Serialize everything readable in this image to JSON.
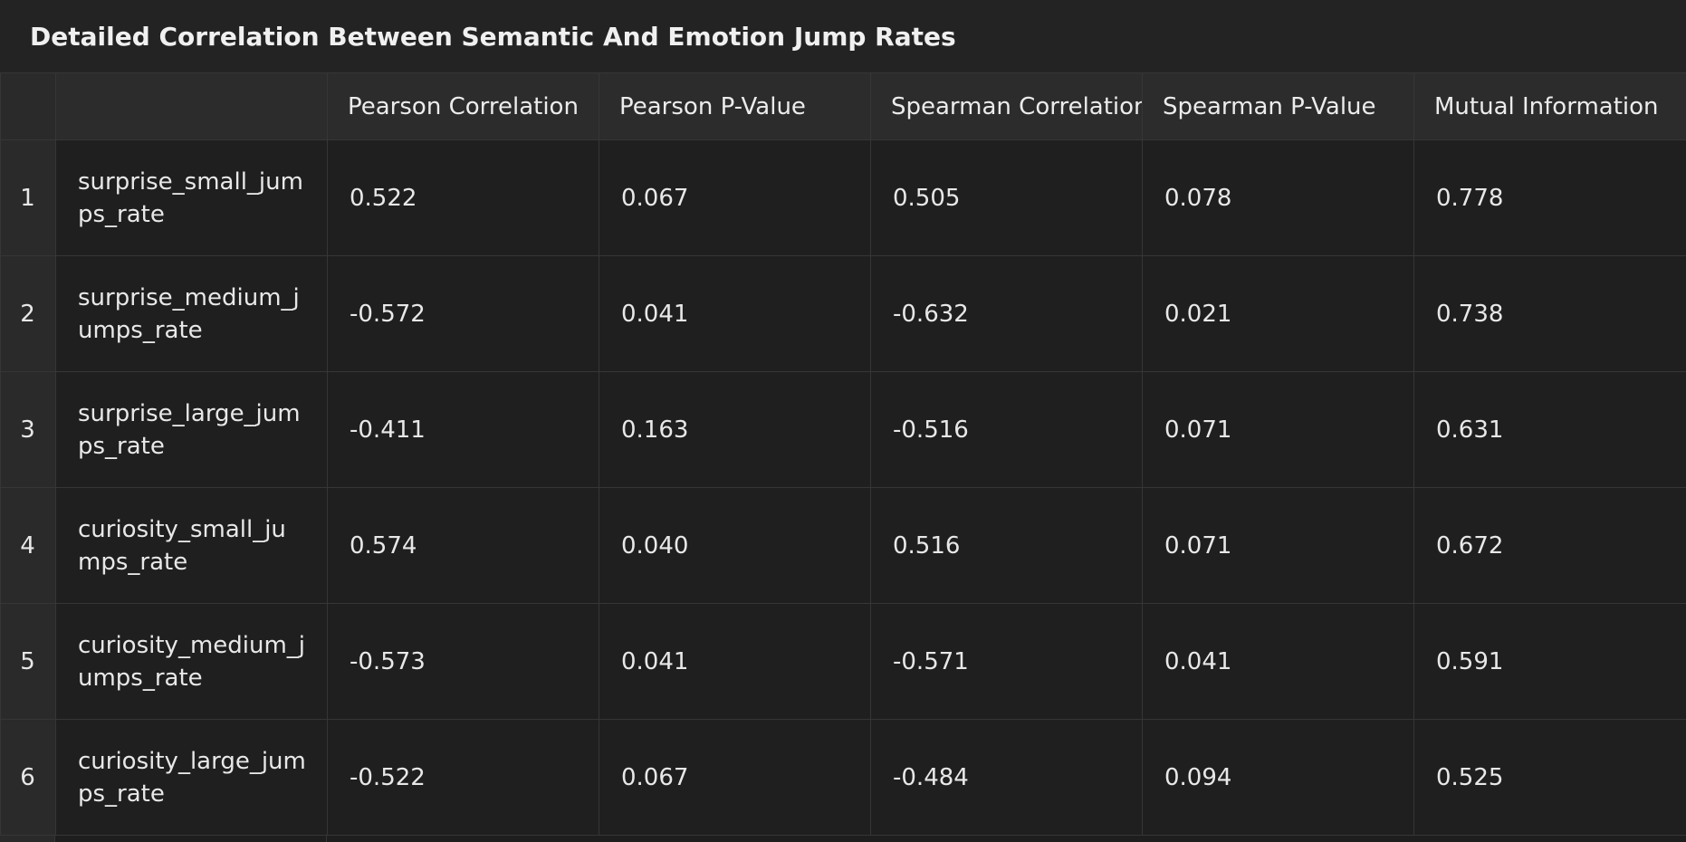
{
  "header": {
    "title": "Detailed Correlation Between Semantic And Emotion Jump Rates"
  },
  "table": {
    "columns": [
      "Pearson Correlation",
      "Pearson P-Value",
      "Spearman Correlation",
      "Spearman P-Value",
      "Mutual Information"
    ],
    "rows": [
      {
        "index": "1",
        "name": "surprise_small_jumps_rate",
        "cells": [
          "0.522",
          "0.067",
          "0.505",
          "0.078",
          "0.778"
        ]
      },
      {
        "index": "2",
        "name": "surprise_medium_jumps_rate",
        "cells": [
          "-0.572",
          "0.041",
          "-0.632",
          "0.021",
          "0.738"
        ]
      },
      {
        "index": "3",
        "name": "surprise_large_jumps_rate",
        "cells": [
          "-0.411",
          "0.163",
          "-0.516",
          "0.071",
          "0.631"
        ]
      },
      {
        "index": "4",
        "name": "curiosity_small_jumps_rate",
        "cells": [
          "0.574",
          "0.040",
          "0.516",
          "0.071",
          "0.672"
        ]
      },
      {
        "index": "5",
        "name": "curiosity_medium_jumps_rate",
        "cells": [
          "-0.573",
          "0.041",
          "-0.571",
          "0.041",
          "0.591"
        ]
      },
      {
        "index": "6",
        "name": "curiosity_large_jumps_rate",
        "cells": [
          "-0.522",
          "0.067",
          "-0.484",
          "0.094",
          "0.525"
        ]
      }
    ]
  }
}
